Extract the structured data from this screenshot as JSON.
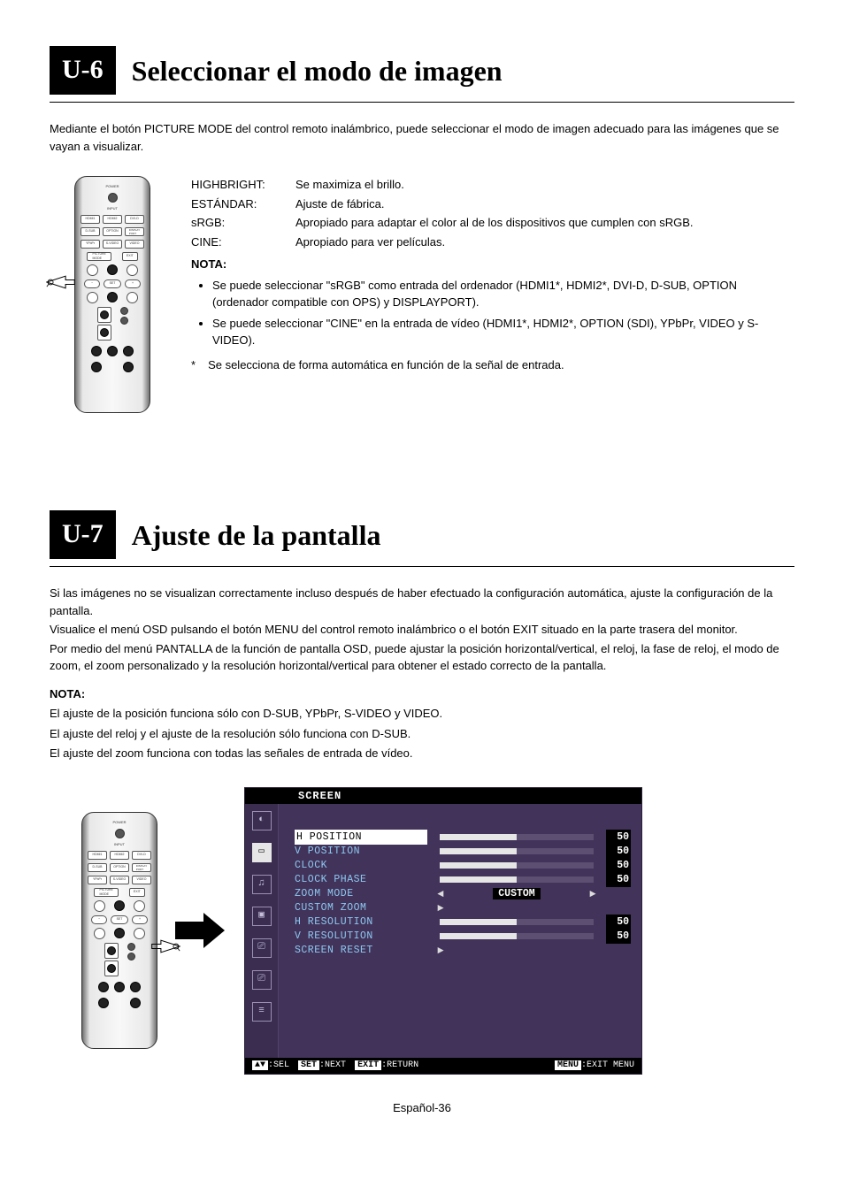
{
  "colors": {
    "page_bg": "#ffffff",
    "text": "#000000",
    "chip_bg": "#000000",
    "chip_fg": "#ffffff",
    "osd_bg": "#42335a",
    "osd_side_bg": "#3a2d50",
    "osd_label": "#8dc8f0",
    "osd_highlight_bg": "#ffffff"
  },
  "u6": {
    "chip": "U-6",
    "title": "Seleccionar el modo de imagen",
    "intro": "Mediante el botón PICTURE MODE del control remoto inalámbrico, puede seleccionar el modo de imagen adecuado para las imágenes que se vayan a visualizar.",
    "modes": [
      {
        "name": "HIGHBRIGHT:",
        "desc": "Se maximiza el brillo."
      },
      {
        "name": "ESTÁNDAR:",
        "desc": "Ajuste de fábrica."
      },
      {
        "name": "sRGB:",
        "desc": "Apropiado para adaptar el color al de los dispositivos que cumplen con sRGB."
      },
      {
        "name": "CINE:",
        "desc": "Apropiado para ver películas."
      }
    ],
    "nota_label": "NOTA:",
    "notes": [
      "Se puede seleccionar \"sRGB\" como entrada del ordenador (HDMI1*, HDMI2*, DVI-D, D-SUB, OPTION (ordenador compatible con OPS) y DISPLAYPORT).",
      "Se puede seleccionar \"CINE\" en la entrada de vídeo (HDMI1*, HDMI2*, OPTION (SDI), YPbPr, VIDEO y S-VIDEO)."
    ],
    "star": "*",
    "star_note": "Se selecciona de forma automática en función de la señal de entrada."
  },
  "u7": {
    "chip": "U-7",
    "title": "Ajuste de la pantalla",
    "intro": [
      "Si las imágenes no se visualizan correctamente incluso después de haber efectuado la configuración automática, ajuste la configuración de la pantalla.",
      "Visualice el menú OSD pulsando el botón MENU del control remoto inalámbrico o el botón EXIT situado en la parte trasera del monitor.",
      "Por medio del menú PANTALLA de la función de pantalla OSD, puede ajustar la posición horizontal/vertical, el reloj, la fase de reloj, el modo de zoom, el zoom personalizado y la resolución horizontal/vertical para obtener el estado correcto de la pantalla."
    ],
    "nota_label": "NOTA:",
    "nota_lines": [
      "El ajuste de la posición funciona sólo con D-SUB, YPbPr, S-VIDEO y VIDEO.",
      "El ajuste del reloj y el ajuste de la resolución sólo funciona con D-SUB.",
      "El ajuste del zoom funciona con todas las señales de entrada de vídeo."
    ]
  },
  "osd": {
    "title": "SCREEN",
    "items": [
      {
        "label": "H POSITION",
        "type": "slider",
        "value": "50",
        "highlight": true
      },
      {
        "label": "V POSITION",
        "type": "slider",
        "value": "50"
      },
      {
        "label": "CLOCK",
        "type": "slider",
        "value": "50"
      },
      {
        "label": "CLOCK PHASE",
        "type": "slider",
        "value": "50"
      },
      {
        "label": "ZOOM MODE",
        "type": "select",
        "value": "CUSTOM"
      },
      {
        "label": "CUSTOM ZOOM",
        "type": "submenu"
      },
      {
        "label": "H RESOLUTION",
        "type": "slider",
        "value": "50"
      },
      {
        "label": "V RESOLUTION",
        "type": "slider",
        "value": "50"
      },
      {
        "label": "SCREEN RESET",
        "type": "submenu"
      }
    ],
    "footer": {
      "sel": {
        "k": "▲▼",
        "t": ":SEL"
      },
      "next": {
        "k": "SET",
        "t": ":NEXT"
      },
      "return": {
        "k": "EXIT",
        "t": ":RETURN"
      },
      "menu": {
        "k": "MENU",
        "t": ":EXIT MENU"
      }
    }
  },
  "page_footer": "Español-36"
}
